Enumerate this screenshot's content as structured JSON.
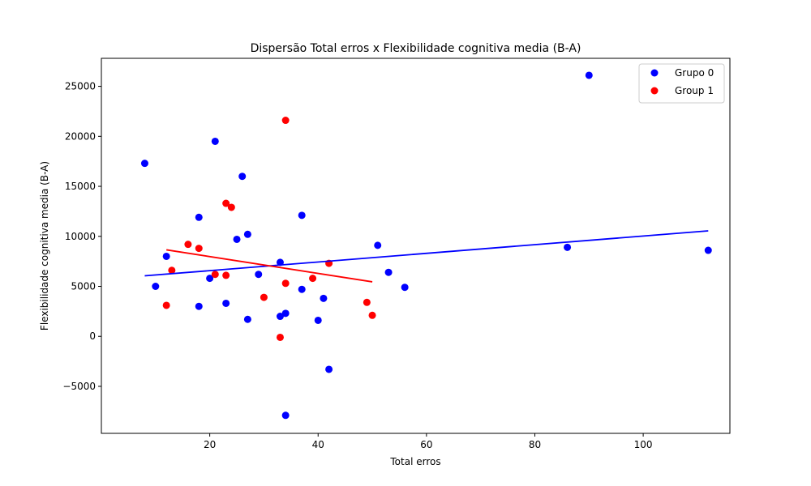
{
  "chart_data": {
    "type": "scatter",
    "title": "Dispersão Total erros x Flexibilidade cognitiva media (B-A)",
    "xlabel": "Total erros",
    "ylabel": "Flexibilidade cognitiva media (B-A)",
    "xlim": [
      0,
      116
    ],
    "ylim": [
      -9700,
      27800
    ],
    "xticks": [
      20,
      40,
      60,
      80,
      100
    ],
    "yticks": [
      -5000,
      0,
      5000,
      10000,
      15000,
      20000,
      25000
    ],
    "grid": false,
    "legend_position": "top-right",
    "series": [
      {
        "name": "Grupo 0",
        "color": "#0000ff",
        "points": [
          [
            8,
            17300
          ],
          [
            10,
            5000
          ],
          [
            12,
            8000
          ],
          [
            18,
            3000
          ],
          [
            18,
            11900
          ],
          [
            20,
            5800
          ],
          [
            21,
            19500
          ],
          [
            23,
            3300
          ],
          [
            25,
            9700
          ],
          [
            26,
            16000
          ],
          [
            27,
            1700
          ],
          [
            27,
            10200
          ],
          [
            29,
            6200
          ],
          [
            33,
            7400
          ],
          [
            33,
            2000
          ],
          [
            34,
            2300
          ],
          [
            34,
            -7900
          ],
          [
            37,
            4700
          ],
          [
            37,
            12100
          ],
          [
            40,
            1600
          ],
          [
            41,
            3800
          ],
          [
            42,
            -3300
          ],
          [
            51,
            9100
          ],
          [
            53,
            6400
          ],
          [
            56,
            4900
          ],
          [
            86,
            8900
          ],
          [
            90,
            26100
          ],
          [
            112,
            8600
          ]
        ],
        "trendline": {
          "x": [
            8,
            112
          ],
          "y": [
            6050,
            10550
          ]
        }
      },
      {
        "name": "Group 1",
        "color": "#ff0000",
        "points": [
          [
            12,
            3100
          ],
          [
            13,
            6600
          ],
          [
            16,
            9200
          ],
          [
            18,
            8800
          ],
          [
            21,
            6200
          ],
          [
            23,
            6100
          ],
          [
            23,
            13300
          ],
          [
            24,
            12900
          ],
          [
            30,
            3900
          ],
          [
            33,
            -100
          ],
          [
            34,
            21600
          ],
          [
            34,
            5300
          ],
          [
            39,
            5800
          ],
          [
            42,
            7300
          ],
          [
            49,
            3400
          ],
          [
            50,
            2100
          ]
        ],
        "trendline": {
          "x": [
            12,
            50
          ],
          "y": [
            8650,
            5450
          ]
        }
      }
    ]
  }
}
